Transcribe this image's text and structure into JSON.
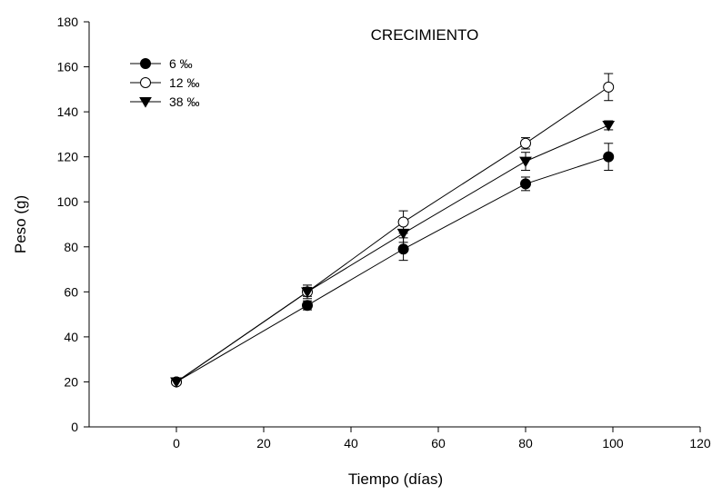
{
  "chart_data": {
    "type": "line",
    "title": "CRECIMIENTO",
    "xlabel": "Tiempo (días)",
    "ylabel": "Peso (g)",
    "xlim": [
      -20,
      120
    ],
    "ylim": [
      0,
      180
    ],
    "x_ticks": [
      0,
      20,
      40,
      60,
      80,
      100,
      120
    ],
    "y_ticks": [
      0,
      20,
      40,
      60,
      80,
      100,
      120,
      140,
      160,
      180
    ],
    "grid": false,
    "legend_position": "top-left",
    "series": [
      {
        "name": "6 ‰",
        "marker": "filled-circle",
        "x": [
          0,
          30,
          52,
          80,
          99
        ],
        "y": [
          20,
          54,
          79,
          108,
          120
        ],
        "error": [
          1,
          2,
          5,
          3,
          6
        ]
      },
      {
        "name": "12 ‰",
        "marker": "open-circle",
        "x": [
          0,
          30,
          52,
          80,
          99
        ],
        "y": [
          20,
          60,
          91,
          126,
          151
        ],
        "error": [
          1,
          2,
          5,
          2.5,
          6
        ]
      },
      {
        "name": "38 ‰",
        "marker": "filled-triangle-down",
        "x": [
          0,
          30,
          52,
          80,
          99
        ],
        "y": [
          20,
          60,
          86,
          118,
          134
        ],
        "error": [
          1,
          3,
          4,
          4,
          2
        ]
      }
    ]
  }
}
